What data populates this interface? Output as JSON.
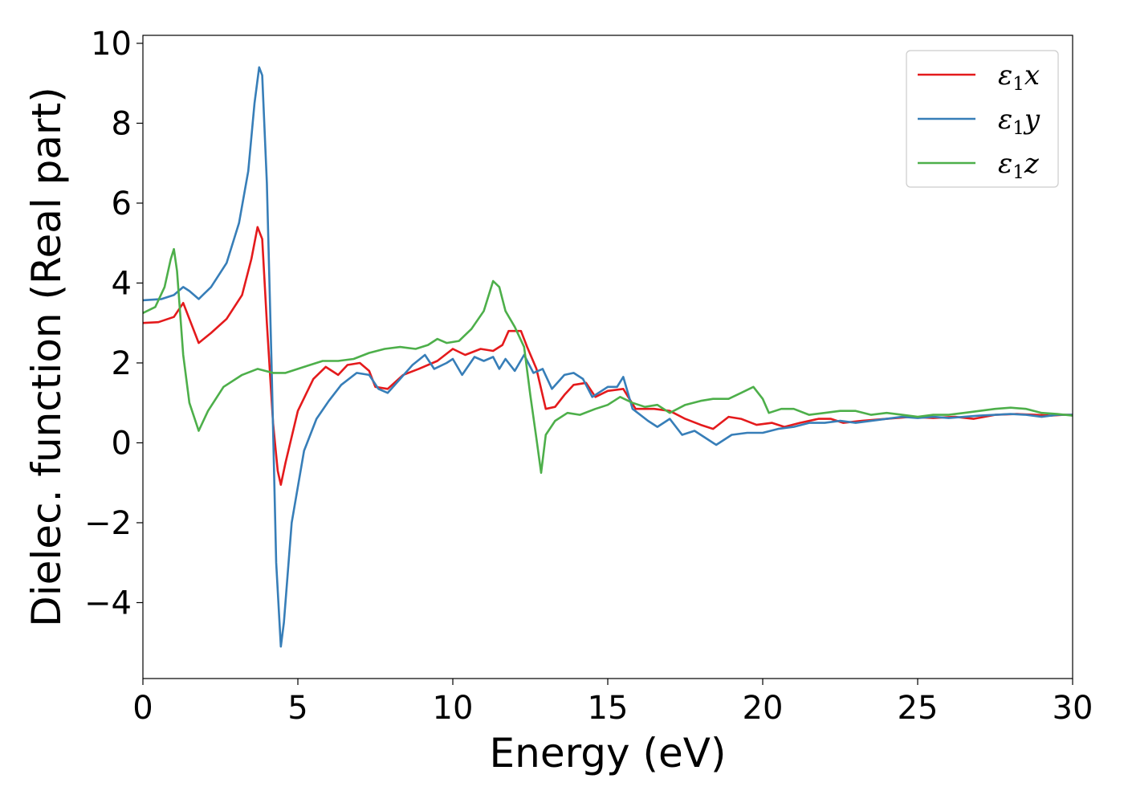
{
  "chart_data": {
    "type": "line",
    "title": "",
    "xlabel": "Energy (eV)",
    "ylabel": "Dielec. function (Real part)",
    "xlim": [
      0,
      30
    ],
    "ylim": [
      -5.9,
      10.2
    ],
    "xticks": [
      0,
      5,
      10,
      15,
      20,
      25,
      30
    ],
    "xtick_labels": [
      "0",
      "5",
      "10",
      "15",
      "20",
      "25",
      "30"
    ],
    "yticks": [
      -4,
      -2,
      0,
      2,
      4,
      6,
      8,
      10
    ],
    "ytick_labels": [
      "−4",
      "−2",
      "0",
      "2",
      "4",
      "6",
      "8",
      "10"
    ],
    "grid": false,
    "legend_position": "top-right",
    "series": [
      {
        "name": "ε1x",
        "legend_main": "ε",
        "legend_sub": "1",
        "legend_var": "x",
        "color": "#e41a1c",
        "points": [
          [
            0,
            3.0
          ],
          [
            0.5,
            3.02
          ],
          [
            1.0,
            3.15
          ],
          [
            1.3,
            3.5
          ],
          [
            1.5,
            3.1
          ],
          [
            1.8,
            2.5
          ],
          [
            2.2,
            2.75
          ],
          [
            2.7,
            3.1
          ],
          [
            3.2,
            3.7
          ],
          [
            3.5,
            4.6
          ],
          [
            3.7,
            5.4
          ],
          [
            3.85,
            5.1
          ],
          [
            4.0,
            3.0
          ],
          [
            4.2,
            0.5
          ],
          [
            4.35,
            -0.7
          ],
          [
            4.45,
            -1.05
          ],
          [
            4.6,
            -0.5
          ],
          [
            5.0,
            0.8
          ],
          [
            5.5,
            1.6
          ],
          [
            5.9,
            1.9
          ],
          [
            6.3,
            1.7
          ],
          [
            6.6,
            1.95
          ],
          [
            7.0,
            2.0
          ],
          [
            7.3,
            1.8
          ],
          [
            7.5,
            1.4
          ],
          [
            7.9,
            1.35
          ],
          [
            8.4,
            1.7
          ],
          [
            8.9,
            1.85
          ],
          [
            9.5,
            2.05
          ],
          [
            10.0,
            2.35
          ],
          [
            10.4,
            2.2
          ],
          [
            10.9,
            2.35
          ],
          [
            11.3,
            2.3
          ],
          [
            11.6,
            2.45
          ],
          [
            11.8,
            2.8
          ],
          [
            12.2,
            2.8
          ],
          [
            12.4,
            2.4
          ],
          [
            12.7,
            1.85
          ],
          [
            13.0,
            0.85
          ],
          [
            13.3,
            0.9
          ],
          [
            13.6,
            1.2
          ],
          [
            13.9,
            1.45
          ],
          [
            14.3,
            1.5
          ],
          [
            14.6,
            1.15
          ],
          [
            15.0,
            1.3
          ],
          [
            15.5,
            1.35
          ],
          [
            15.9,
            0.85
          ],
          [
            16.5,
            0.85
          ],
          [
            17.0,
            0.8
          ],
          [
            17.5,
            0.6
          ],
          [
            18.0,
            0.45
          ],
          [
            18.4,
            0.35
          ],
          [
            18.9,
            0.65
          ],
          [
            19.3,
            0.6
          ],
          [
            19.8,
            0.45
          ],
          [
            20.3,
            0.5
          ],
          [
            20.7,
            0.4
          ],
          [
            21.2,
            0.5
          ],
          [
            21.8,
            0.6
          ],
          [
            22.2,
            0.6
          ],
          [
            22.6,
            0.5
          ],
          [
            23.2,
            0.55
          ],
          [
            24.0,
            0.6
          ],
          [
            24.8,
            0.65
          ],
          [
            25.5,
            0.62
          ],
          [
            26.2,
            0.65
          ],
          [
            26.8,
            0.6
          ],
          [
            27.5,
            0.7
          ],
          [
            28.2,
            0.72
          ],
          [
            28.8,
            0.7
          ],
          [
            29.3,
            0.68
          ],
          [
            29.7,
            0.7
          ],
          [
            30.0,
            0.7
          ]
        ]
      },
      {
        "name": "ε1y",
        "legend_main": "ε",
        "legend_sub": "1",
        "legend_var": "y",
        "color": "#377eb8",
        "points": [
          [
            0,
            3.57
          ],
          [
            0.6,
            3.6
          ],
          [
            1.0,
            3.7
          ],
          [
            1.3,
            3.9
          ],
          [
            1.5,
            3.8
          ],
          [
            1.8,
            3.6
          ],
          [
            2.2,
            3.9
          ],
          [
            2.7,
            4.5
          ],
          [
            3.1,
            5.5
          ],
          [
            3.4,
            6.8
          ],
          [
            3.6,
            8.5
          ],
          [
            3.75,
            9.4
          ],
          [
            3.85,
            9.2
          ],
          [
            4.0,
            6.5
          ],
          [
            4.15,
            2.0
          ],
          [
            4.3,
            -3.0
          ],
          [
            4.45,
            -5.1
          ],
          [
            4.55,
            -4.5
          ],
          [
            4.8,
            -2.0
          ],
          [
            5.2,
            -0.2
          ],
          [
            5.6,
            0.6
          ],
          [
            6.0,
            1.05
          ],
          [
            6.4,
            1.45
          ],
          [
            6.9,
            1.75
          ],
          [
            7.3,
            1.7
          ],
          [
            7.6,
            1.35
          ],
          [
            7.9,
            1.25
          ],
          [
            8.3,
            1.6
          ],
          [
            8.7,
            1.95
          ],
          [
            9.1,
            2.2
          ],
          [
            9.4,
            1.85
          ],
          [
            9.8,
            2.0
          ],
          [
            10.0,
            2.1
          ],
          [
            10.3,
            1.7
          ],
          [
            10.7,
            2.15
          ],
          [
            11.0,
            2.05
          ],
          [
            11.3,
            2.15
          ],
          [
            11.5,
            1.85
          ],
          [
            11.7,
            2.1
          ],
          [
            12.0,
            1.8
          ],
          [
            12.3,
            2.2
          ],
          [
            12.6,
            1.75
          ],
          [
            12.9,
            1.85
          ],
          [
            13.2,
            1.35
          ],
          [
            13.6,
            1.7
          ],
          [
            13.9,
            1.75
          ],
          [
            14.2,
            1.6
          ],
          [
            14.5,
            1.15
          ],
          [
            15.0,
            1.4
          ],
          [
            15.3,
            1.4
          ],
          [
            15.5,
            1.65
          ],
          [
            15.8,
            0.85
          ],
          [
            16.3,
            0.55
          ],
          [
            16.6,
            0.4
          ],
          [
            17.0,
            0.6
          ],
          [
            17.4,
            0.2
          ],
          [
            17.8,
            0.3
          ],
          [
            18.2,
            0.1
          ],
          [
            18.5,
            -0.05
          ],
          [
            19.0,
            0.2
          ],
          [
            19.5,
            0.25
          ],
          [
            20.0,
            0.25
          ],
          [
            20.5,
            0.35
          ],
          [
            21.0,
            0.4
          ],
          [
            21.5,
            0.5
          ],
          [
            22.0,
            0.5
          ],
          [
            22.5,
            0.55
          ],
          [
            23.0,
            0.5
          ],
          [
            23.5,
            0.55
          ],
          [
            24.0,
            0.6
          ],
          [
            24.5,
            0.65
          ],
          [
            25.0,
            0.62
          ],
          [
            25.5,
            0.65
          ],
          [
            26.0,
            0.62
          ],
          [
            26.5,
            0.65
          ],
          [
            27.0,
            0.68
          ],
          [
            27.5,
            0.7
          ],
          [
            28.0,
            0.72
          ],
          [
            28.5,
            0.7
          ],
          [
            29.0,
            0.65
          ],
          [
            29.5,
            0.7
          ],
          [
            30.0,
            0.7
          ]
        ]
      },
      {
        "name": "ε1z",
        "legend_main": "ε",
        "legend_sub": "1",
        "legend_var": "z",
        "color": "#4daf4a",
        "points": [
          [
            0,
            3.25
          ],
          [
            0.4,
            3.4
          ],
          [
            0.7,
            3.9
          ],
          [
            0.9,
            4.6
          ],
          [
            1.0,
            4.85
          ],
          [
            1.1,
            4.3
          ],
          [
            1.3,
            2.2
          ],
          [
            1.5,
            1.0
          ],
          [
            1.8,
            0.3
          ],
          [
            2.1,
            0.8
          ],
          [
            2.6,
            1.4
          ],
          [
            3.2,
            1.7
          ],
          [
            3.7,
            1.85
          ],
          [
            4.2,
            1.75
          ],
          [
            4.6,
            1.75
          ],
          [
            5.2,
            1.9
          ],
          [
            5.8,
            2.05
          ],
          [
            6.3,
            2.05
          ],
          [
            6.8,
            2.1
          ],
          [
            7.3,
            2.25
          ],
          [
            7.8,
            2.35
          ],
          [
            8.3,
            2.4
          ],
          [
            8.8,
            2.35
          ],
          [
            9.2,
            2.45
          ],
          [
            9.5,
            2.6
          ],
          [
            9.8,
            2.5
          ],
          [
            10.2,
            2.55
          ],
          [
            10.6,
            2.85
          ],
          [
            11.0,
            3.3
          ],
          [
            11.3,
            4.05
          ],
          [
            11.5,
            3.9
          ],
          [
            11.7,
            3.3
          ],
          [
            12.0,
            2.9
          ],
          [
            12.3,
            2.4
          ],
          [
            12.5,
            1.2
          ],
          [
            12.7,
            0.1
          ],
          [
            12.85,
            -0.75
          ],
          [
            13.0,
            0.2
          ],
          [
            13.3,
            0.55
          ],
          [
            13.7,
            0.75
          ],
          [
            14.1,
            0.7
          ],
          [
            14.6,
            0.85
          ],
          [
            15.0,
            0.95
          ],
          [
            15.4,
            1.15
          ],
          [
            15.8,
            1.0
          ],
          [
            16.2,
            0.9
          ],
          [
            16.6,
            0.95
          ],
          [
            17.0,
            0.75
          ],
          [
            17.5,
            0.95
          ],
          [
            18.0,
            1.05
          ],
          [
            18.4,
            1.1
          ],
          [
            18.9,
            1.1
          ],
          [
            19.3,
            1.25
          ],
          [
            19.7,
            1.4
          ],
          [
            20.0,
            1.1
          ],
          [
            20.2,
            0.75
          ],
          [
            20.6,
            0.85
          ],
          [
            21.0,
            0.85
          ],
          [
            21.5,
            0.7
          ],
          [
            22.0,
            0.75
          ],
          [
            22.5,
            0.8
          ],
          [
            23.0,
            0.8
          ],
          [
            23.5,
            0.7
          ],
          [
            24.0,
            0.75
          ],
          [
            24.5,
            0.7
          ],
          [
            25.0,
            0.65
          ],
          [
            25.5,
            0.7
          ],
          [
            26.0,
            0.7
          ],
          [
            26.5,
            0.75
          ],
          [
            27.0,
            0.8
          ],
          [
            27.5,
            0.85
          ],
          [
            28.0,
            0.88
          ],
          [
            28.5,
            0.85
          ],
          [
            29.0,
            0.75
          ],
          [
            29.5,
            0.72
          ],
          [
            30.0,
            0.68
          ]
        ]
      }
    ]
  }
}
